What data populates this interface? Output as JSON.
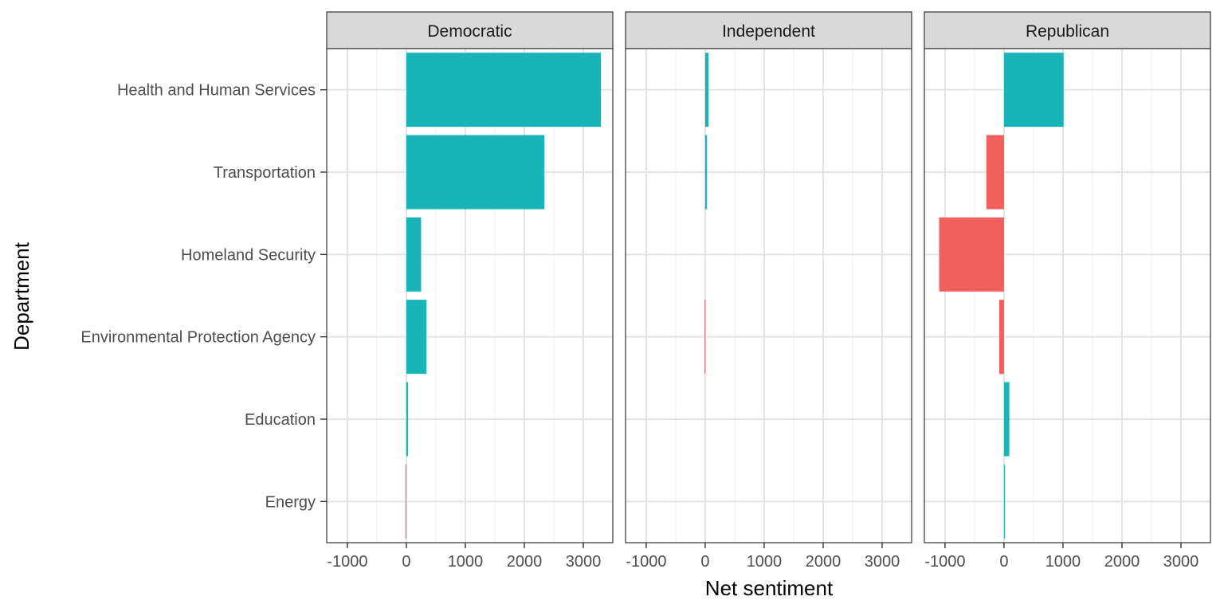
{
  "chart_data": {
    "type": "bar",
    "orientation": "horizontal",
    "facet_by": "party",
    "xlabel": "Net sentiment",
    "ylabel": "Department",
    "xlim": [
      -1350,
      3500
    ],
    "x_ticks": [
      -1000,
      0,
      1000,
      2000,
      3000
    ],
    "x_tick_labels": [
      "-1000",
      "0",
      "1000",
      "2000",
      "3000"
    ],
    "categories": [
      "Health and Human Services",
      "Transportation",
      "Homeland Security",
      "Environmental Protection Agency",
      "Education",
      "Energy"
    ],
    "colors": {
      "positive": "#19b4b8",
      "negative": "#f2605d"
    },
    "grid": true,
    "legend": "none",
    "panels": [
      {
        "name": "Democratic",
        "values": [
          3300,
          2340,
          250,
          340,
          30,
          -15
        ]
      },
      {
        "name": "Independent",
        "values": [
          55,
          30,
          0,
          -10,
          0,
          0
        ]
      },
      {
        "name": "Republican",
        "values": [
          1010,
          -300,
          -1100,
          -80,
          90,
          15
        ]
      }
    ]
  }
}
